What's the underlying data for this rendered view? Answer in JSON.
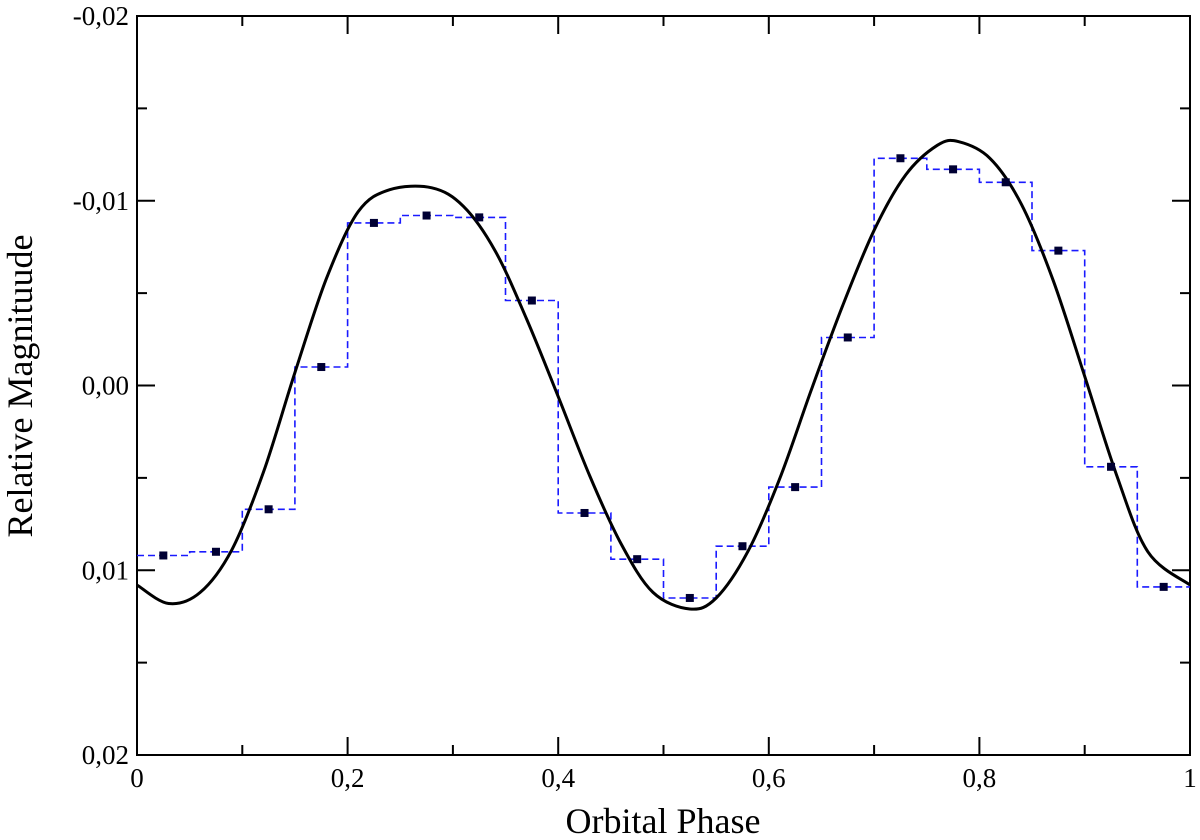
{
  "chart_data": {
    "type": "line",
    "xlabel": "Orbital Phase",
    "ylabel": "Relative Magnituude",
    "xlim": [
      0,
      1
    ],
    "ylim": [
      0.02,
      -0.02
    ],
    "y_inverted": true,
    "grid": false,
    "x_ticks": [
      0,
      0.2,
      0.4,
      0.6,
      0.8,
      1
    ],
    "x_tick_labels": [
      "0",
      "0,2",
      "0,4",
      "0,6",
      "0,8",
      "1"
    ],
    "y_ticks": [
      -0.02,
      -0.01,
      0.0,
      0.01,
      0.02
    ],
    "y_tick_labels": [
      "-0,02",
      "-0,01",
      "0,00",
      "0,01",
      "0,02"
    ],
    "colors": {
      "points": "#000033",
      "step": "#1a1aff",
      "fit": "#000000",
      "axes": "#000000"
    },
    "series": [
      {
        "style": "squares",
        "x": [
          0.025,
          0.075,
          0.125,
          0.175,
          0.225,
          0.275,
          0.325,
          0.375,
          0.425,
          0.475,
          0.525,
          0.575,
          0.625,
          0.675,
          0.725,
          0.775,
          0.825,
          0.875,
          0.925,
          0.975
        ],
        "y": [
          0.0092,
          0.009,
          0.0067,
          -0.001,
          -0.0088,
          -0.0092,
          -0.0091,
          -0.0046,
          0.0069,
          0.0094,
          0.0115,
          0.0087,
          0.0055,
          -0.0026,
          -0.0123,
          -0.0117,
          -0.011,
          -0.0073,
          0.0044,
          0.0109
        ]
      },
      {
        "style": "dashed-step",
        "bin_edges": [
          0,
          0.05,
          0.1,
          0.15,
          0.2,
          0.25,
          0.3,
          0.35,
          0.4,
          0.45,
          0.5,
          0.55,
          0.6,
          0.65,
          0.7,
          0.75,
          0.8,
          0.85,
          0.9,
          0.95,
          1.0
        ],
        "values": [
          0.0092,
          0.009,
          0.0067,
          -0.001,
          -0.0088,
          -0.0092,
          -0.0091,
          -0.0046,
          0.0069,
          0.0094,
          0.0115,
          0.0087,
          0.0055,
          -0.0026,
          -0.0123,
          -0.0117,
          -0.011,
          -0.0073,
          0.0044,
          0.0109
        ]
      },
      {
        "style": "solid-curve",
        "x": [
          0,
          0.03,
          0.06,
          0.09,
          0.12,
          0.15,
          0.18,
          0.21,
          0.24,
          0.28,
          0.31,
          0.34,
          0.37,
          0.4,
          0.43,
          0.46,
          0.49,
          0.525,
          0.55,
          0.58,
          0.61,
          0.64,
          0.67,
          0.7,
          0.73,
          0.76,
          0.78,
          0.81,
          0.84,
          0.87,
          0.9,
          0.93,
          0.96,
          1.0
        ],
        "y": [
          0.0108,
          0.0118,
          0.0112,
          0.0089,
          0.0047,
          -0.0007,
          -0.0058,
          -0.0094,
          -0.0106,
          -0.0107,
          -0.0097,
          -0.0073,
          -0.0036,
          0.0006,
          0.0049,
          0.0086,
          0.0112,
          0.0121,
          0.0115,
          0.009,
          0.0051,
          0.0003,
          -0.0043,
          -0.0084,
          -0.0114,
          -0.013,
          -0.0132,
          -0.0123,
          -0.0098,
          -0.0057,
          -0.0005,
          0.0048,
          0.009,
          0.0108
        ]
      }
    ]
  }
}
